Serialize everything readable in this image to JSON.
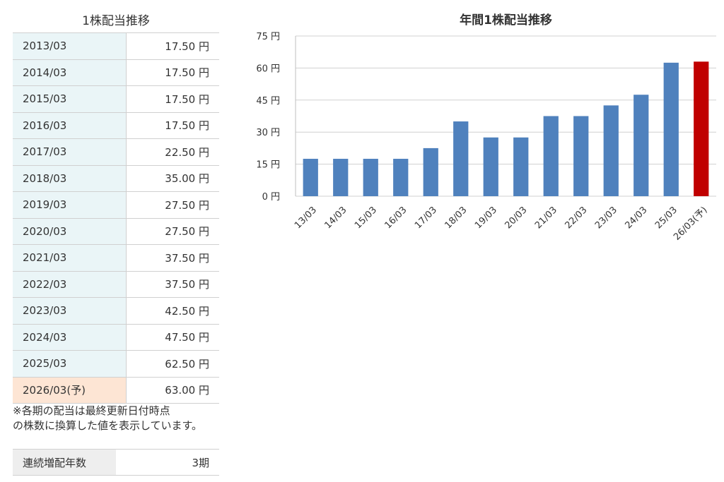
{
  "table": {
    "title": "1株配当推移",
    "rows": [
      {
        "year": "2013/03",
        "value": "17.50 円"
      },
      {
        "year": "2014/03",
        "value": "17.50 円"
      },
      {
        "year": "2015/03",
        "value": "17.50 円"
      },
      {
        "year": "2016/03",
        "value": "17.50 円"
      },
      {
        "year": "2017/03",
        "value": "22.50 円"
      },
      {
        "year": "2018/03",
        "value": "35.00 円"
      },
      {
        "year": "2019/03",
        "value": "27.50 円"
      },
      {
        "year": "2020/03",
        "value": "27.50 円"
      },
      {
        "year": "2021/03",
        "value": "37.50 円"
      },
      {
        "year": "2022/03",
        "value": "37.50 円"
      },
      {
        "year": "2023/03",
        "value": "42.50 円"
      },
      {
        "year": "2024/03",
        "value": "47.50 円"
      },
      {
        "year": "2025/03",
        "value": "62.50 円"
      },
      {
        "year": "2026/03(予)",
        "value": "63.00 円"
      }
    ],
    "note_line1": "※各期の配当は最終更新日付時点",
    "note_line2": "の株数に換算した値を表示しています。"
  },
  "consecutive": {
    "label": "連続増配年数",
    "value": "3期"
  },
  "colors": {
    "bar": "#4f81bd",
    "forecast_bar": "#c00000",
    "grid": "#d0d0d0"
  },
  "chart_data": {
    "type": "bar",
    "title": "年間1株配当推移",
    "categories": [
      "13/03",
      "14/03",
      "15/03",
      "16/03",
      "17/03",
      "18/03",
      "19/03",
      "20/03",
      "21/03",
      "22/03",
      "23/03",
      "24/03",
      "25/03",
      "26/03(予)"
    ],
    "values": [
      17.5,
      17.5,
      17.5,
      17.5,
      22.5,
      35.0,
      27.5,
      27.5,
      37.5,
      37.5,
      42.5,
      47.5,
      62.5,
      63.0
    ],
    "forecast_index": 13,
    "ylim": [
      0,
      75
    ],
    "yticks": [
      0,
      15,
      30,
      45,
      60,
      75
    ],
    "ytick_labels": [
      "0 円",
      "15 円",
      "30 円",
      "45 円",
      "60 円",
      "75 円"
    ],
    "grid": true,
    "legend": "none"
  }
}
